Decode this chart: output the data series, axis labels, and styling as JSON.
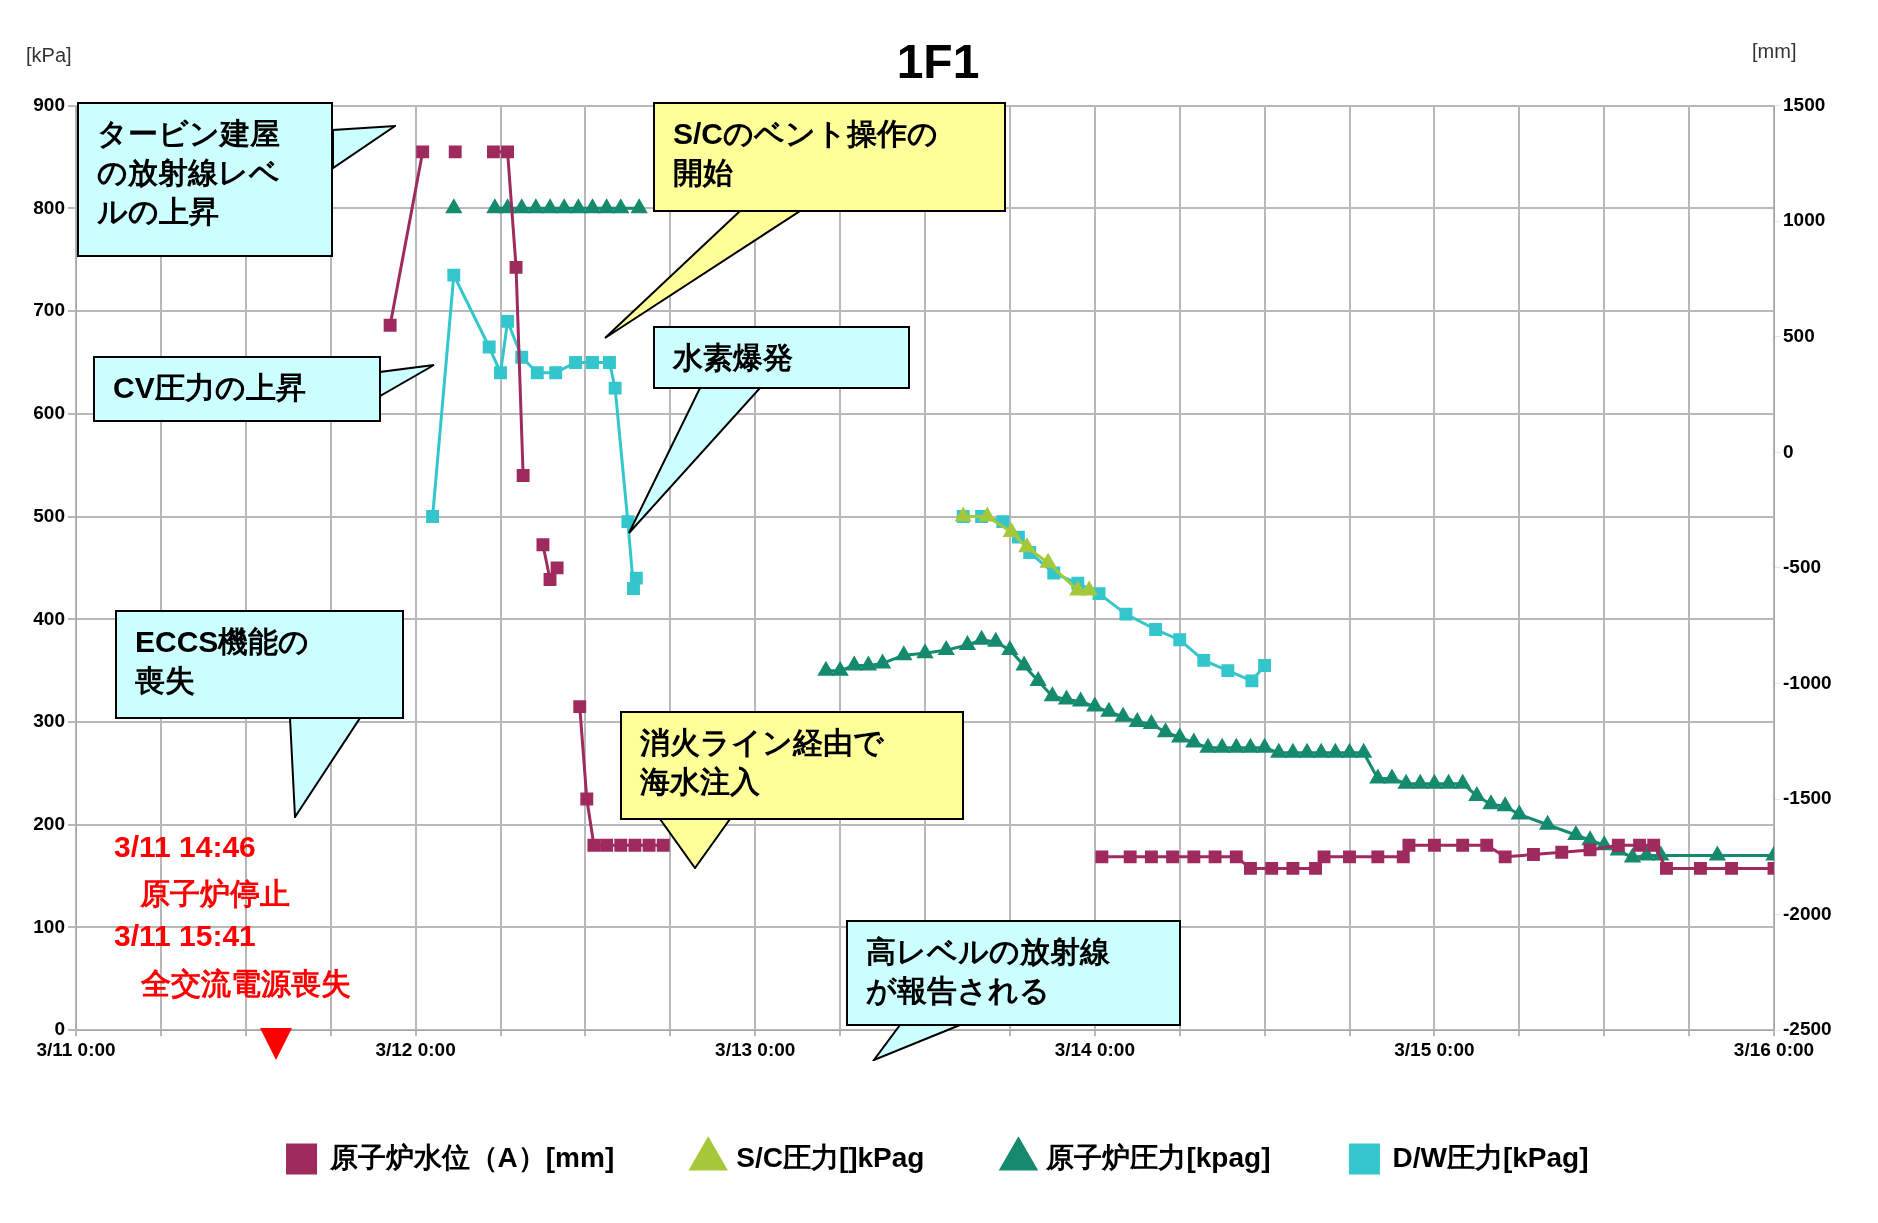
{
  "chart_data": {
    "type": "line",
    "title": "1F1",
    "ylabel": "[kPa]",
    "y2label": "[mm]",
    "xlim": [
      "--03-11T00:00",
      "--03-16T00:00"
    ],
    "xticks": [
      {
        "value": "--03-11T00:00",
        "label": "3/11 0:00"
      },
      {
        "value": "--03-11T06:00",
        "label": null
      },
      {
        "value": "--03-11T12:00",
        "label": null
      },
      {
        "value": "--03-11T18:00",
        "label": null
      },
      {
        "value": "--03-12T00:00",
        "label": "3/12 0:00"
      },
      {
        "value": "--03-12T06:00",
        "label": null
      },
      {
        "value": "--03-12T12:00",
        "label": null
      },
      {
        "value": "--03-12T18:00",
        "label": null
      },
      {
        "value": "--03-13T00:00",
        "label": "3/13 0:00"
      },
      {
        "value": "--03-13T06:00",
        "label": null
      },
      {
        "value": "--03-13T12:00",
        "label": null
      },
      {
        "value": "--03-13T18:00",
        "label": null
      },
      {
        "value": "--03-14T00:00",
        "label": "3/14 0:00"
      },
      {
        "value": "--03-14T06:00",
        "label": null
      },
      {
        "value": "--03-14T12:00",
        "label": null
      },
      {
        "value": "--03-14T18:00",
        "label": null
      },
      {
        "value": "--03-15T00:00",
        "label": "3/15 0:00"
      },
      {
        "value": "--03-15T06:00",
        "label": null
      },
      {
        "value": "--03-15T12:00",
        "label": null
      },
      {
        "value": "--03-15T18:00",
        "label": null
      },
      {
        "value": "--03-16T00:00",
        "label": "3/16 0:00"
      }
    ],
    "ylim": [
      0,
      900
    ],
    "yticks": [
      0,
      100,
      200,
      300,
      400,
      500,
      600,
      700,
      800,
      900
    ],
    "y2lim": [
      -2500,
      1500
    ],
    "y2ticks": [
      -2500,
      -2000,
      -1500,
      -1000,
      -500,
      0,
      500,
      1000,
      1500
    ],
    "grid": true,
    "legend": "bottom",
    "series": [
      {
        "name": "D/W圧力[kPag]",
        "color": "#33c6cc",
        "marker": "square",
        "x": [
          "--03-12T01:12",
          "--03-12T02:42",
          "--03-12T05:12",
          "--03-12T06:00",
          "--03-12T06:30",
          "--03-12T07:30",
          "--03-12T08:36",
          "--03-12T09:54",
          "--03-12T11:18",
          "--03-12T12:30",
          "--03-12T13:42",
          "--03-12T14:06",
          "--03-12T15:00",
          "--03-12T15:24",
          "--03-12T15:36",
          "--03-13T02:00",
          "--03-13T14:42",
          "--03-13T16:00",
          "--03-13T17:30",
          "--03-13T18:36",
          "--03-13T19:24",
          "--03-13T21:06",
          "--03-13T22:48",
          "--03-14T00:18",
          "--03-14T02:12",
          "--03-14T04:18",
          "--03-14T06:00",
          "--03-14T07:42",
          "--03-14T09:24",
          "--03-14T11:06",
          "--03-14T12:00"
        ],
        "values": [
          500,
          735,
          665,
          640,
          690,
          655,
          640,
          640,
          650,
          650,
          650,
          625,
          495,
          430,
          440,
          null,
          500,
          500,
          495,
          480,
          465,
          445,
          435,
          425,
          405,
          390,
          380,
          360,
          350,
          340,
          355
        ]
      },
      {
        "name": "原子炉圧力[kpag]",
        "color": "#158a6e",
        "marker": "triangle",
        "x": [
          "--03-12T02:42",
          "--03-12T04:00",
          "--03-12T05:36",
          "--03-12T06:30",
          "--03-12T07:30",
          "--03-12T08:30",
          "--03-12T09:30",
          "--03-12T10:30",
          "--03-12T11:30",
          "--03-12T12:30",
          "--03-12T13:30",
          "--03-12T14:30",
          "--03-12T15:48",
          "--03-12T21:00",
          "--03-13T05:00",
          "--03-13T06:00",
          "--03-13T07:00",
          "--03-13T08:00",
          "--03-13T09:00",
          "--03-13T10:30",
          "--03-13T12:00",
          "--03-13T13:30",
          "--03-13T15:00",
          "--03-13T16:00",
          "--03-13T17:00",
          "--03-13T18:00",
          "--03-13T19:00",
          "--03-13T20:00",
          "--03-13T21:00",
          "--03-13T22:00",
          "--03-13T23:00",
          "--03-14T00:00",
          "--03-14T01:00",
          "--03-14T02:00",
          "--03-14T03:00",
          "--03-14T04:00",
          "--03-14T05:00",
          "--03-14T06:00",
          "--03-14T07:00",
          "--03-14T08:00",
          "--03-14T09:00",
          "--03-14T10:00",
          "--03-14T11:00",
          "--03-14T12:00",
          "--03-14T13:00",
          "--03-14T14:00",
          "--03-14T15:00",
          "--03-14T16:00",
          "--03-14T17:00",
          "--03-14T18:00",
          "--03-14T19:00",
          "--03-14T20:00",
          "--03-14T21:00",
          "--03-14T22:00",
          "--03-14T23:00",
          "--03-15T00:00",
          "--03-15T01:00",
          "--03-15T02:00",
          "--03-15T03:00",
          "--03-15T04:00",
          "--03-15T05:00",
          "--03-15T06:00",
          "--03-15T08:00",
          "--03-15T10:00",
          "--03-15T11:00",
          "--03-15T12:00",
          "--03-15T13:00",
          "--03-15T14:00",
          "--03-15T15:00",
          "--03-15T16:00",
          "--03-15T20:00",
          "--03-16T00:00"
        ],
        "values": [
          800,
          null,
          800,
          800,
          800,
          800,
          800,
          800,
          800,
          800,
          800,
          800,
          800,
          null,
          350,
          350,
          355,
          355,
          357,
          365,
          367,
          370,
          375,
          380,
          378,
          370,
          355,
          340,
          325,
          322,
          320,
          315,
          310,
          305,
          300,
          298,
          290,
          285,
          280,
          275,
          275,
          275,
          275,
          275,
          270,
          270,
          270,
          270,
          270,
          270,
          270,
          245,
          245,
          240,
          240,
          240,
          240,
          240,
          228,
          220,
          218,
          210,
          200,
          190,
          185,
          180,
          175,
          168,
          170,
          170,
          170,
          170
        ]
      },
      {
        "name": "S/C圧力[]kPag",
        "color": "#a5c83a",
        "marker": "triangle",
        "x": [
          "--03-13T14:42",
          "--03-13T16:24",
          "--03-13T18:06",
          "--03-13T19:12",
          "--03-13T20:42",
          "--03-13T22:48",
          "--03-13T23:36"
        ],
        "values": [
          500,
          500,
          485,
          470,
          455,
          428,
          428
        ]
      },
      {
        "name": "原子炉水位（A）[mm]",
        "color": "#9e2a5e",
        "marker": "square",
        "axis": "y2",
        "x": [
          "--03-11T22:12",
          "--03-12T00:30",
          "--03-12T01:30",
          "--03-12T02:48",
          "--03-12T04:00",
          "--03-12T05:30",
          "--03-12T06:30",
          "--03-12T07:06",
          "--03-12T07:36",
          "--03-12T08:30",
          "--03-12T09:00",
          "--03-12T09:30",
          "--03-12T10:00",
          "--03-12T11:00",
          "--03-12T11:36",
          "--03-12T12:06",
          "--03-12T12:36",
          "--03-12T13:30",
          "--03-12T14:30",
          "--03-12T15:30",
          "--03-12T16:30",
          "--03-12T17:30",
          "--03-13T02:00",
          "--03-14T00:30",
          "--03-14T02:30",
          "--03-14T04:00",
          "--03-14T05:30",
          "--03-14T07:00",
          "--03-14T08:30",
          "--03-14T10:00",
          "--03-14T11:00",
          "--03-14T12:30",
          "--03-14T14:00",
          "--03-14T15:36",
          "--03-14T16:12",
          "--03-14T18:00",
          "--03-14T20:00",
          "--03-14T21:48",
          "--03-14T22:12",
          "--03-15T00:00",
          "--03-15T02:00",
          "--03-15T03:42",
          "--03-15T05:00",
          "--03-15T07:00",
          "--03-15T09:00",
          "--03-15T11:00",
          "--03-15T13:00",
          "--03-15T14:30",
          "--03-15T15:30",
          "--03-15T16:24",
          "--03-15T18:48",
          "--03-15T21:00",
          "--03-16T00:00"
        ],
        "values": [
          550,
          1300,
          null,
          1300,
          null,
          1300,
          1300,
          800,
          -100,
          null,
          -400,
          -550,
          -500,
          null,
          -1100,
          -1500,
          -1700,
          -1700,
          -1700,
          -1700,
          -1700,
          -1700,
          null,
          -1750,
          -1750,
          -1750,
          -1750,
          -1750,
          -1750,
          -1750,
          -1800,
          -1800,
          -1800,
          -1800,
          -1750,
          -1750,
          -1750,
          -1750,
          -1700,
          -1700,
          -1700,
          -1700,
          -1750,
          -1740,
          -1730,
          -1720,
          -1700,
          -1700,
          -1700,
          -1800,
          -1800,
          -1800,
          -1800
        ]
      }
    ],
    "annotations": [
      "タービン建屋の放射線レベルの上昇",
      "S/Cのベント操作の開始",
      "CV圧力の上昇",
      "水素爆発",
      "ECCS機能の喪失",
      "消火ライン経由で海水注入",
      "高レベルの放射線が報告される",
      "3/11 14:46",
      "原子炉停止",
      "3/11 15:41",
      "全交流電源喪失"
    ]
  }
}
